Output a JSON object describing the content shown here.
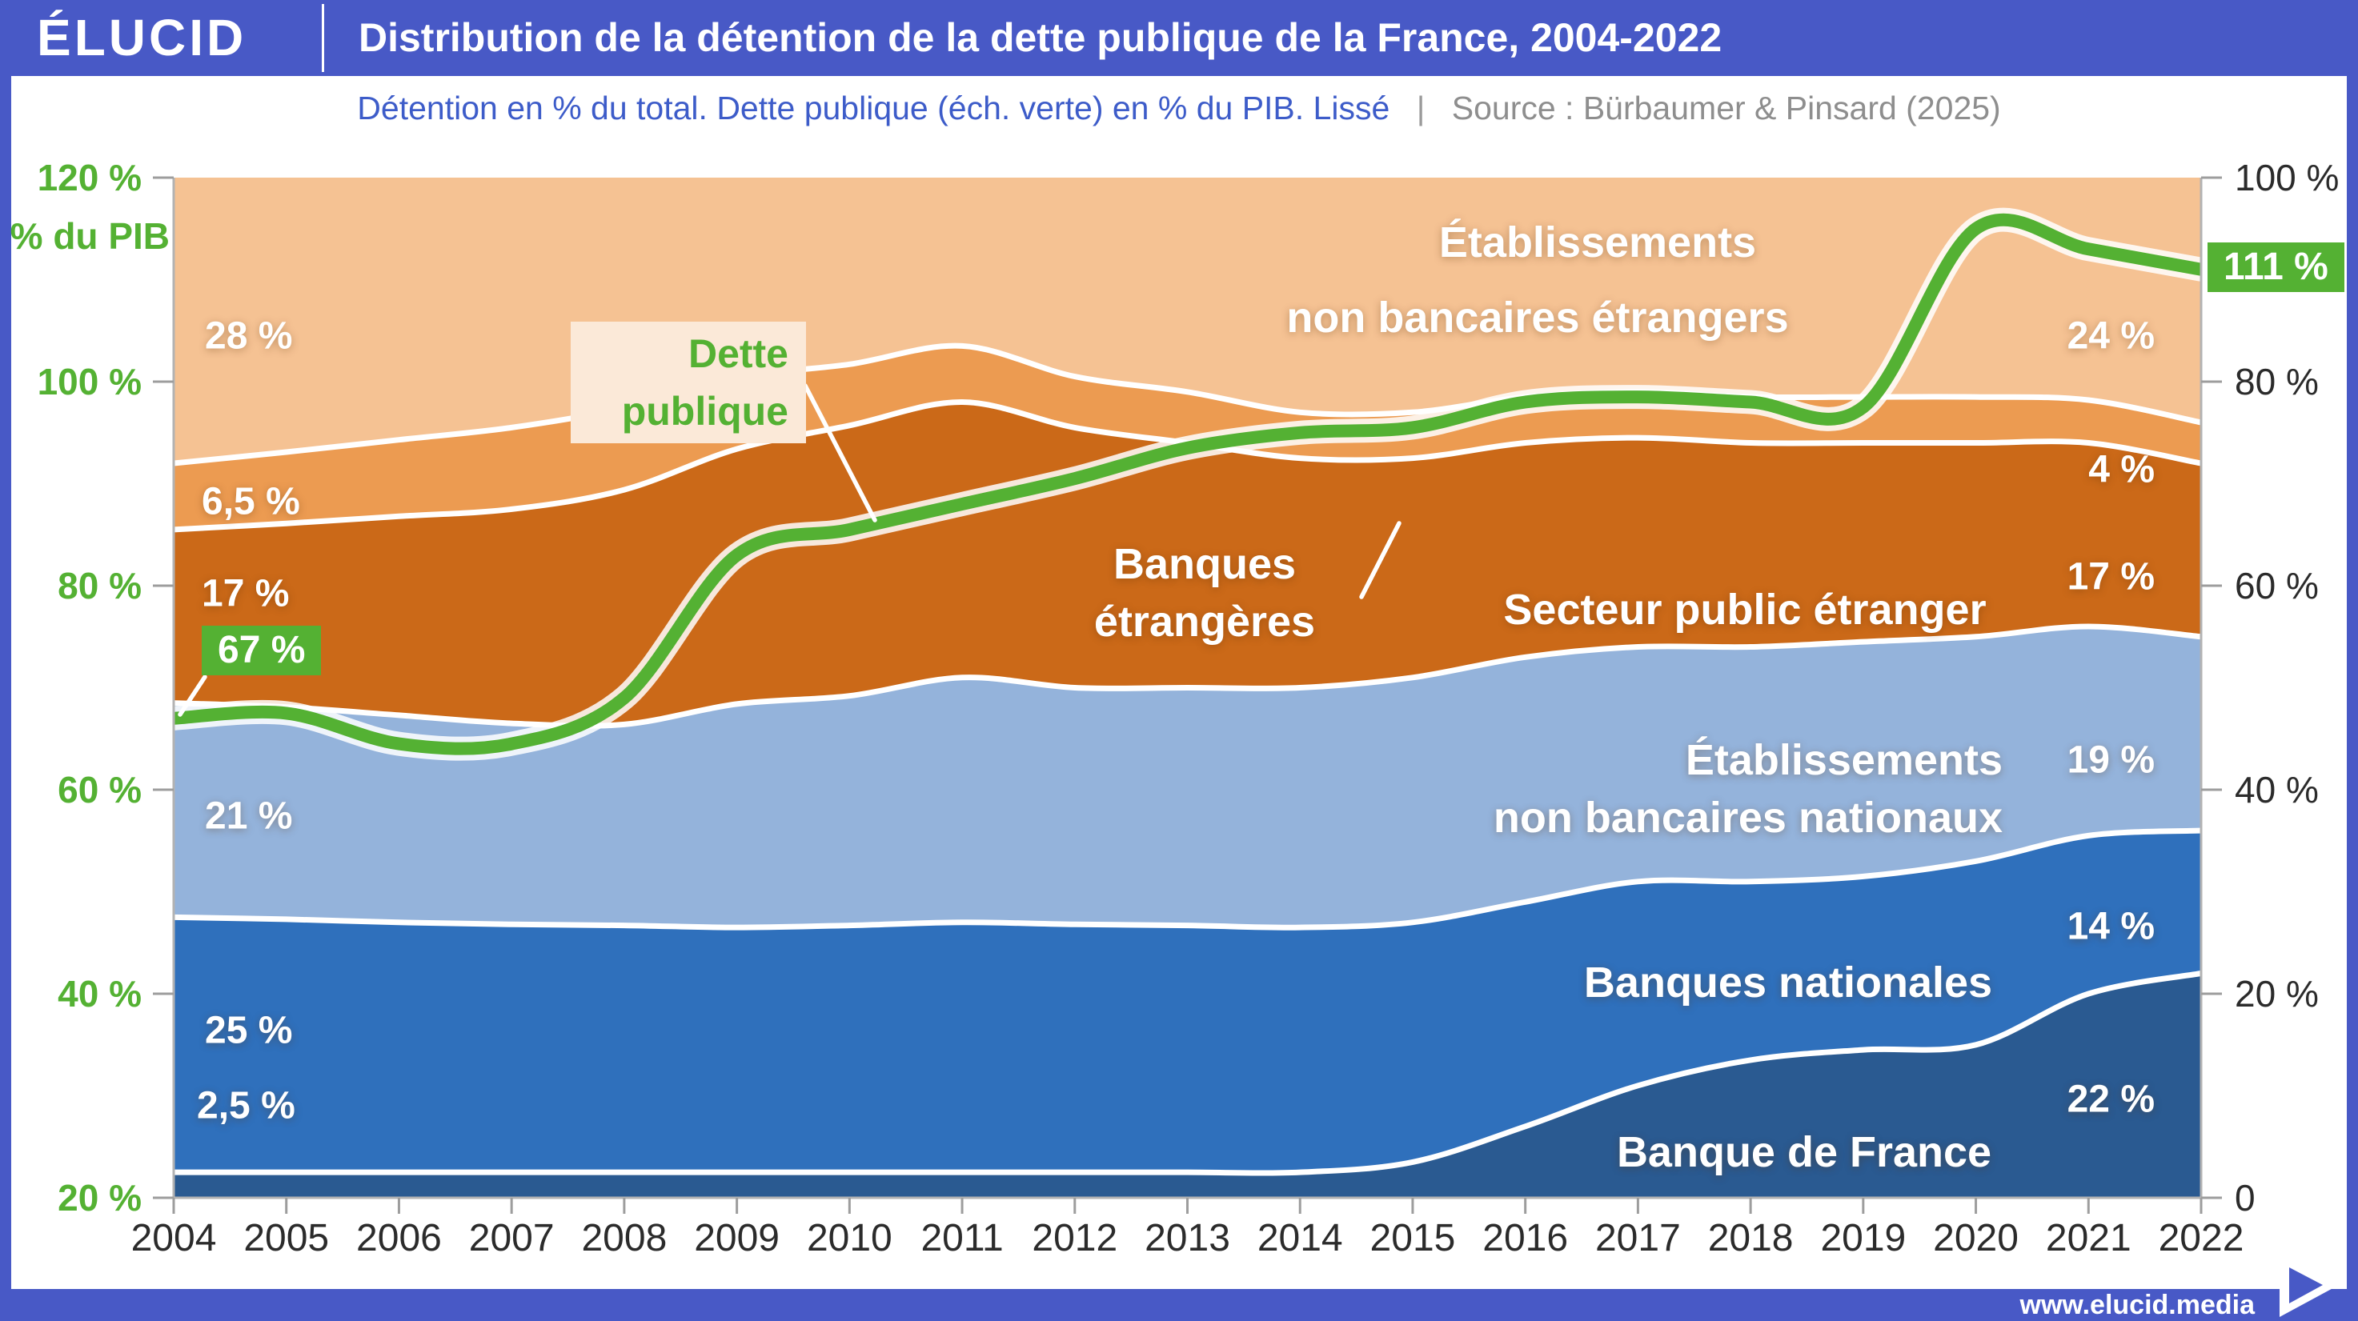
{
  "header": {
    "logo": "ÉLUCID",
    "title": "Distribution de la détention de la dette publique de la France, 2004-2022"
  },
  "subtitle": {
    "description": "Détention en % du total. Dette publique (éch. verte) en % du PIB. Lissé",
    "separator": "|",
    "source": "Source : Bürbaumer & Pinsard (2025)"
  },
  "footer": {
    "url": "www.elucid.media"
  },
  "colors": {
    "brand_blue": "#4859C6",
    "green": "#54B133",
    "light_orange": "#F5C293",
    "medium_orange": "#EC9B51",
    "dark_orange": "#CB6918",
    "light_blue": "#94B3DB",
    "medium_blue": "#2F70BC",
    "dark_blue": "#2A5A91",
    "axis_text": "#2b2b2b",
    "tick_gray": "#9d9d9d"
  },
  "area_labels": {
    "enbe_line1": "Établissements",
    "enbe_line2": "non bancaires étrangers",
    "be_line1": "Banques",
    "be_line2": "étrangères",
    "spe": "Secteur public étranger",
    "enbn_line1": "Établissements",
    "enbn_line2": "non bancaires nationaux",
    "bn": "Banques nationales",
    "bdf": "Banque de France"
  },
  "annotations": {
    "debt_box_line1": "Dette",
    "debt_box_line2": "publique",
    "debt_start": "67 %",
    "debt_end": "111 %",
    "enbe_start": "28 %",
    "enbe_end": "24 %",
    "be_start": "6,5 %",
    "be_end": "4 %",
    "spe_start": "17 %",
    "spe_end": "17 %",
    "enbn_start": "21 %",
    "enbn_end": "19 %",
    "bn_start": "25 %",
    "bn_end": "14 %",
    "bdf_start": "2,5 %",
    "bdf_end": "22 %"
  },
  "chart_data": {
    "type": "area",
    "stacked": true,
    "title": "Distribution de la détention de la dette publique de la France, 2004-2022",
    "x": [
      2004,
      2005,
      2006,
      2007,
      2008,
      2009,
      2010,
      2011,
      2012,
      2013,
      2014,
      2015,
      2016,
      2017,
      2018,
      2019,
      2020,
      2021,
      2022
    ],
    "series": [
      {
        "name": "Banque de France",
        "color": "#2A5A91",
        "values": [
          2.5,
          2.5,
          2.5,
          2.5,
          2.5,
          2.5,
          2.5,
          2.5,
          2.5,
          2.5,
          2.5,
          3.5,
          7,
          11,
          13.5,
          14.5,
          15,
          20,
          22
        ]
      },
      {
        "name": "Banques nationales",
        "color": "#2F70BC",
        "values": [
          25,
          24.8,
          24.5,
          24.3,
          24.2,
          24,
          24.2,
          24.5,
          24.3,
          24.2,
          24,
          23.5,
          22,
          20,
          17.5,
          17,
          18,
          15.5,
          14
        ]
      },
      {
        "name": "Établissements non bancaires nationaux",
        "color": "#94B3DB",
        "values": [
          21,
          20.8,
          20.3,
          19.7,
          19.7,
          21.9,
          22.5,
          24,
          23.2,
          23.3,
          23.5,
          24,
          24,
          23,
          23,
          23,
          22,
          20.5,
          19
        ]
      },
      {
        "name": "Secteur public étranger",
        "color": "#CB6918",
        "values": [
          17,
          18,
          19.5,
          21,
          23,
          25,
          26.5,
          27,
          25.5,
          24,
          22.5,
          21.5,
          21,
          20.5,
          20,
          19.5,
          19,
          18,
          17
        ]
      },
      {
        "name": "Banques étrangères",
        "color": "#EC9B51",
        "values": [
          6.5,
          7,
          7.5,
          8,
          8,
          7,
          6,
          5.5,
          5,
          5,
          4.5,
          4.5,
          4.5,
          4.5,
          4.5,
          4.5,
          4.5,
          4.2,
          4
        ]
      },
      {
        "name": "Établissements non bancaires étrangers",
        "color": "#F5C293",
        "values": [
          28,
          26.9,
          25.7,
          24.5,
          22.6,
          19.6,
          18.3,
          16.5,
          19.5,
          21,
          23,
          23,
          21.5,
          21,
          21.5,
          21.5,
          21.5,
          21.8,
          24
        ]
      }
    ],
    "line": {
      "name": "Dette publique",
      "color": "#54B133",
      "axis": "left",
      "values": [
        67,
        67.5,
        64.5,
        64.5,
        69,
        83,
        85.5,
        88,
        90.5,
        93.5,
        95,
        95.5,
        98,
        98.5,
        98,
        97.5,
        115,
        113,
        111
      ]
    },
    "left_axis": {
      "label": "% du PIB",
      "min": 20,
      "max": 120,
      "tick_values": [
        120,
        100,
        80,
        60,
        40,
        20
      ],
      "tick_labels": [
        "120 %",
        "100 %",
        "80 %",
        "60 %",
        "40 %",
        "20 %"
      ]
    },
    "right_axis": {
      "min": 0,
      "max": 100,
      "tick_values": [
        100,
        80,
        60,
        40,
        20,
        0
      ],
      "tick_labels": [
        "100 %",
        "80 %",
        "60 %",
        "40 %",
        "20 %",
        "0"
      ]
    },
    "grid": false,
    "legend": "labels-on-areas"
  }
}
